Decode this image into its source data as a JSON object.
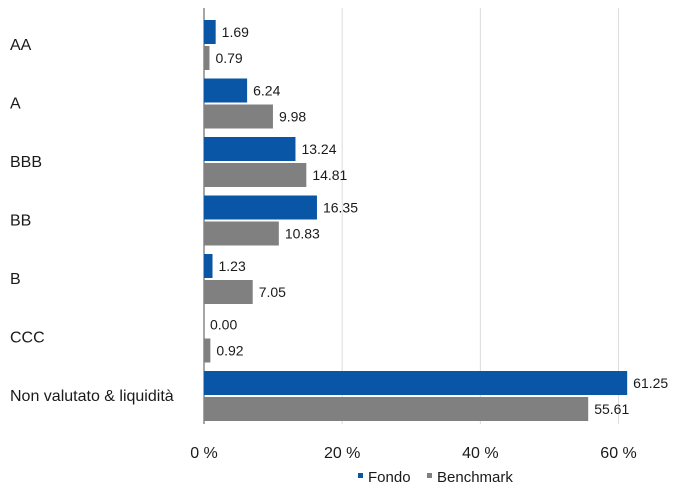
{
  "chart_data": {
    "type": "bar",
    "orientation": "horizontal",
    "categories": [
      "AA",
      "A",
      "BBB",
      "BB",
      "B",
      "CCC",
      "Non valutato & liquidità"
    ],
    "series": [
      {
        "name": "Fondo",
        "color": "#0a56a6",
        "values": [
          1.69,
          6.24,
          13.24,
          16.35,
          1.23,
          0.0,
          61.25
        ],
        "labels": [
          "1.69",
          "6.24",
          "13.24",
          "16.35",
          "1.23",
          "0.00",
          "61.25"
        ]
      },
      {
        "name": "Benchmark",
        "color": "#808080",
        "values": [
          0.79,
          9.98,
          14.81,
          10.83,
          7.05,
          0.92,
          55.61
        ],
        "labels": [
          "0.79",
          "9.98",
          "14.81",
          "10.83",
          "7.05",
          "0.92",
          "55.61"
        ]
      }
    ],
    "xlim": [
      0,
      66
    ],
    "xticks": [
      0,
      20,
      40,
      60
    ],
    "xtick_labels": [
      "0 %",
      "20 %",
      "40 %",
      "60 %"
    ],
    "grid": true,
    "legend": "bottom-right"
  }
}
